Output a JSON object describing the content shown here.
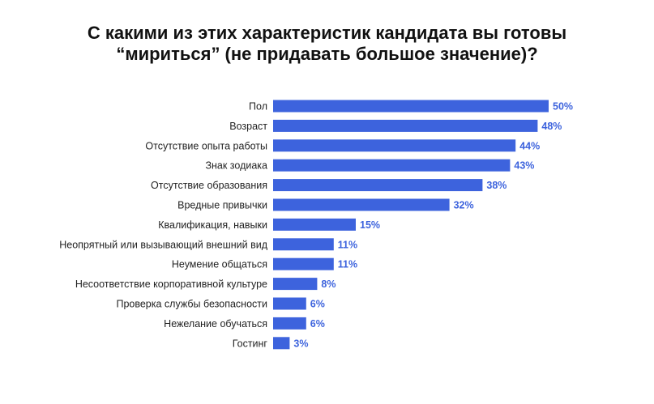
{
  "chart_data": {
    "type": "bar",
    "orientation": "horizontal",
    "title_line1": "С какими из этих характеристик кандидата вы готовы",
    "title_line2": "“мириться” (не придавать большое значение)?",
    "categories": [
      "Пол",
      "Возраст",
      "Отсутствие опыта работы",
      "Знак зодиака",
      "Отсутствие образования",
      "Вредные привычки",
      "Квалификация, навыки",
      "Неопрятный или вызывающий внешний вид",
      "Неумение общаться",
      "Несоответствие корпоративной культуре",
      "Проверка службы безопасности",
      "Нежелание обучаться",
      "Гостинг"
    ],
    "values": [
      50,
      48,
      44,
      43,
      38,
      32,
      15,
      11,
      11,
      8,
      6,
      6,
      3
    ],
    "value_labels": [
      "50%",
      "48%",
      "44%",
      "43%",
      "38%",
      "32%",
      "15%",
      "11%",
      "11%",
      "8%",
      "6%",
      "6%",
      "3%"
    ],
    "bar_color": "#3d63dd",
    "value_label_color": "#3d63dd",
    "grid": false,
    "legend": "none"
  }
}
